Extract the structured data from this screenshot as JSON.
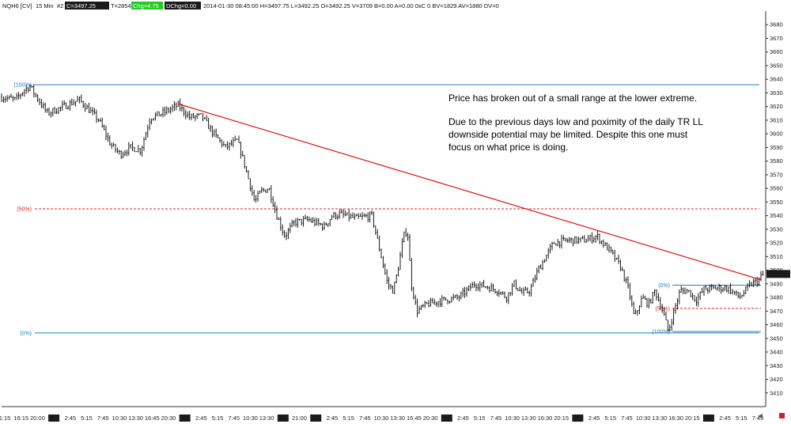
{
  "header": {
    "symbol": "NQH6 [CV]",
    "interval": "15 Min",
    "slot": "#2",
    "close": "C=3497.25",
    "ticks": "T=2854",
    "chg": "Chg=4.75",
    "dchg": "DChg=0.00",
    "info": "2014-01-30 08:45:00 H=3497.75 L=3492.25 O=3492.25 V=3709 B=0.00 A=0.00 0xC 0 BV=1829 AV=1880 DV=0",
    "colors": {
      "dark": "#1a1a1a",
      "green": "#22cc22"
    }
  },
  "annotation": {
    "lines": [
      "Price has broken out of a small range at the lower extreme.",
      "",
      "Due to the previous days low and poximity of the daily TR LL",
      "downside potential may be limited.  Despite this one must",
      "focus on what price is doing."
    ]
  },
  "chart_data": {
    "type": "ohlc",
    "price_axis": {
      "ylim": [
        3400,
        3690
      ],
      "ticks": [
        3410,
        3420,
        3430,
        3440,
        3450,
        3460,
        3470,
        3480,
        3490,
        3500,
        3510,
        3520,
        3530,
        3540,
        3550,
        3560,
        3570,
        3580,
        3590,
        3600,
        3610,
        3620,
        3630,
        3640,
        3650,
        3660,
        3670,
        3680
      ],
      "last_price_label": "3497.25",
      "last_price": 3497.25
    },
    "time_axis": {
      "labels": [
        "1:15",
        "16:15",
        "20:00",
        "1:23",
        "2:45",
        "5:15",
        "7:45",
        "10:30",
        "13:30",
        "16:45",
        "20:30",
        "1:24",
        "2:45",
        "5:15",
        "7:45",
        "10:30",
        "13:30",
        "1:26",
        "21:00",
        "1:27",
        "2:45",
        "5:15",
        "7:45",
        "10:30",
        "13:30",
        "16:45",
        "20:30",
        "1:28",
        "2:45",
        "5:15",
        "7:45",
        "10:30",
        "13:30",
        "16:30",
        "20:15",
        "1:29",
        "2:45",
        "5:15",
        "7:45",
        "10:30",
        "13:30",
        "16:30",
        "20:15",
        "1:30",
        "2:45",
        "5:15",
        "7:45"
      ],
      "date_marker_labels": [
        "1:23",
        "1:24",
        "1:26",
        "1:27",
        "1:28",
        "1:29",
        "1:30"
      ]
    },
    "price_path": [
      [
        0,
        3627
      ],
      [
        20,
        3625
      ],
      [
        30,
        3632
      ],
      [
        38,
        3635
      ],
      [
        45,
        3628
      ],
      [
        60,
        3615
      ],
      [
        80,
        3620
      ],
      [
        100,
        3625
      ],
      [
        125,
        3610
      ],
      [
        140,
        3592
      ],
      [
        152,
        3585
      ],
      [
        165,
        3590
      ],
      [
        178,
        3588
      ],
      [
        190,
        3612
      ],
      [
        205,
        3615
      ],
      [
        225,
        3621
      ],
      [
        240,
        3612
      ],
      [
        255,
        3613
      ],
      [
        270,
        3600
      ],
      [
        285,
        3590
      ],
      [
        300,
        3595
      ],
      [
        308,
        3580
      ],
      [
        315,
        3565
      ],
      [
        322,
        3550
      ],
      [
        330,
        3558
      ],
      [
        340,
        3560
      ],
      [
        350,
        3540
      ],
      [
        360,
        3525
      ],
      [
        372,
        3535
      ],
      [
        390,
        3537
      ],
      [
        410,
        3532
      ],
      [
        420,
        3540
      ],
      [
        430,
        3541
      ],
      [
        450,
        3538
      ],
      [
        470,
        3540
      ],
      [
        476,
        3525
      ],
      [
        482,
        3510
      ],
      [
        490,
        3490
      ],
      [
        497,
        3485
      ],
      [
        503,
        3500
      ],
      [
        510,
        3525
      ],
      [
        515,
        3530
      ],
      [
        520,
        3490
      ],
      [
        527,
        3470
      ],
      [
        540,
        3475
      ],
      [
        560,
        3478
      ],
      [
        580,
        3480
      ],
      [
        600,
        3490
      ],
      [
        615,
        3488
      ],
      [
        630,
        3485
      ],
      [
        640,
        3480
      ],
      [
        650,
        3490
      ],
      [
        660,
        3483
      ],
      [
        670,
        3485
      ],
      [
        680,
        3500
      ],
      [
        690,
        3510
      ],
      [
        700,
        3520
      ],
      [
        720,
        3522
      ],
      [
        740,
        3522
      ],
      [
        755,
        3525
      ],
      [
        762,
        3520
      ],
      [
        770,
        3515
      ],
      [
        785,
        3502
      ],
      [
        795,
        3485
      ],
      [
        802,
        3465
      ],
      [
        812,
        3480
      ],
      [
        820,
        3475
      ],
      [
        828,
        3485
      ],
      [
        838,
        3470
      ],
      [
        845,
        3455
      ],
      [
        852,
        3470
      ],
      [
        860,
        3485
      ],
      [
        870,
        3485
      ],
      [
        880,
        3478
      ],
      [
        890,
        3486
      ],
      [
        905,
        3487
      ],
      [
        920,
        3487
      ],
      [
        935,
        3480
      ],
      [
        950,
        3490
      ],
      [
        958,
        3492
      ],
      [
        962,
        3495
      ],
      [
        965,
        3497.25
      ]
    ],
    "fib_upper": {
      "start_x_frac": 0.0,
      "levels": [
        {
          "label": "(100%)",
          "value": 3636,
          "color": "#1f7fbf",
          "style": "solid"
        },
        {
          "label": "(50%)",
          "value": 3545,
          "color": "#dd2222",
          "style": "dashed"
        },
        {
          "label": "(0%)",
          "value": 3454,
          "color": "#1f7fbf",
          "style": "solid"
        }
      ]
    },
    "fib_lower": {
      "levels": [
        {
          "label": "(0%)",
          "value": 3489,
          "color": "#1f7fbf",
          "style": "solid"
        },
        {
          "label": "(50%)",
          "value": 3472,
          "color": "#dd2222",
          "style": "dashed"
        },
        {
          "label": "(100%)",
          "value": 3455,
          "color": "#1f7fbf",
          "style": "solid"
        }
      ]
    },
    "trendline": {
      "color": "#e01010",
      "from": 3622,
      "to": 3493
    },
    "grid": false,
    "legend": "none",
    "colors": {
      "bars": "#000000",
      "axis": "#333333",
      "last_price_bg": "#1a1a1a",
      "last_price_fg": "#ffffff"
    }
  }
}
